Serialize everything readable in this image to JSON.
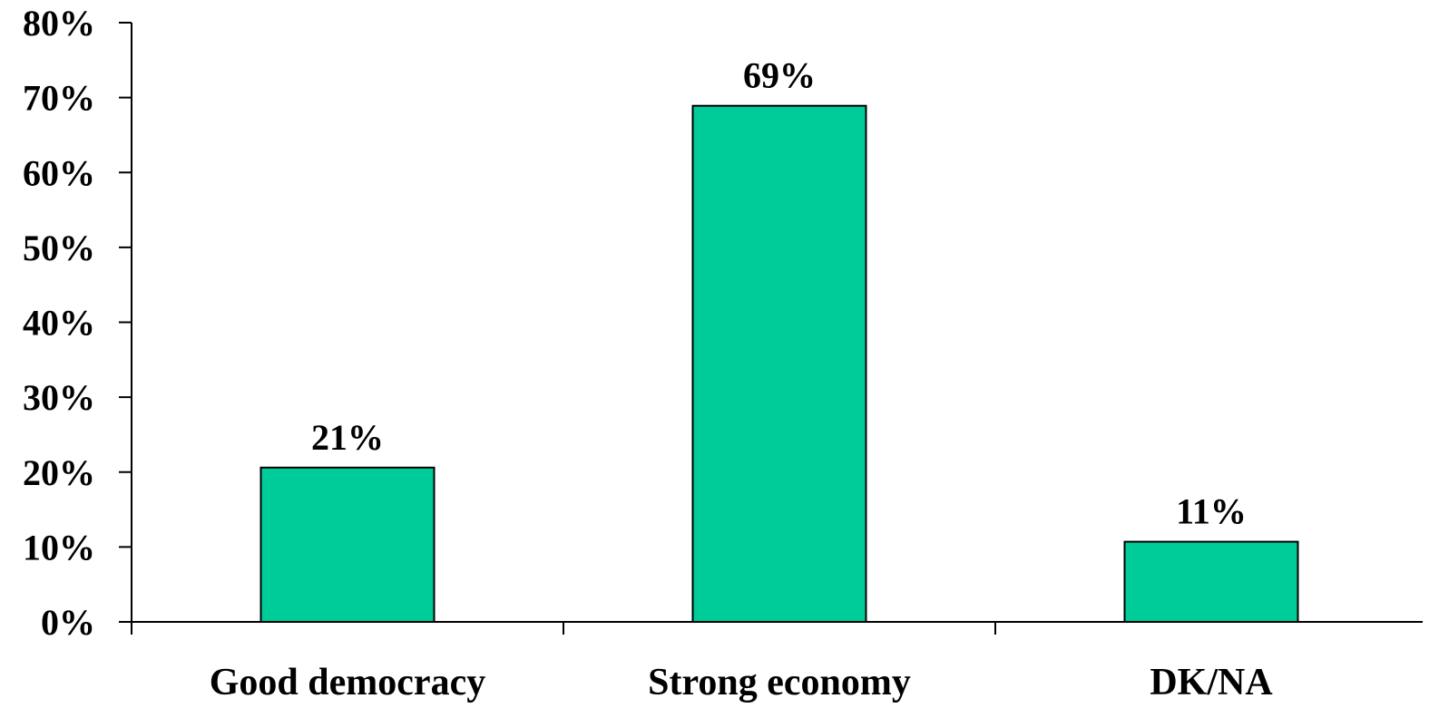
{
  "chart_data": {
    "type": "bar",
    "title": "",
    "xlabel": "",
    "ylabel": "",
    "categories": [
      "Good democracy",
      "Strong economy",
      "DK/NA"
    ],
    "values": [
      20.6,
      68.9,
      10.7
    ],
    "data_labels": [
      "21%",
      "69%",
      "11%"
    ],
    "ylim": [
      0,
      80
    ],
    "y_ticks": [
      0,
      10,
      20,
      30,
      40,
      50,
      60,
      70,
      80
    ],
    "y_tick_labels": [
      "0%",
      "10%",
      "20%",
      "30%",
      "40%",
      "50%",
      "60%",
      "70%",
      "80%"
    ],
    "bar_color": "#00CC99",
    "grid": false,
    "legend": "none"
  }
}
